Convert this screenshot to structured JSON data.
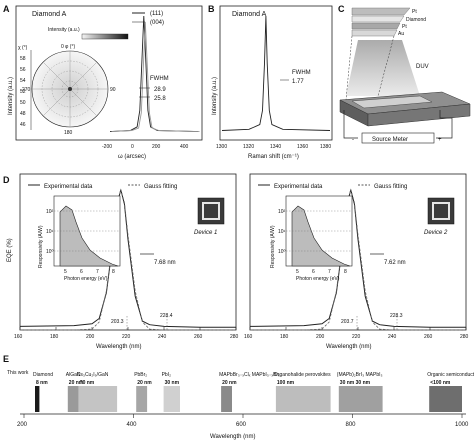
{
  "panel_letters": {
    "a": "A",
    "b": "B",
    "c": "C",
    "d": "D",
    "e": "E"
  },
  "panelA": {
    "title": "Diamond A",
    "legend": [
      "(111)",
      "(004)"
    ],
    "intensity_label": "Intensity (a.u.)",
    "chi_label": "χ (°)",
    "chi_ticks": [
      "58",
      "56",
      "54",
      "52",
      "50",
      "48",
      "46"
    ],
    "phi_label": "0 φ (°)",
    "angle_labels": {
      "left": "270",
      "right": "90",
      "bottom": "180"
    },
    "fwhm_label": "FWHM",
    "fwhm_values": [
      "28.9",
      "25.8"
    ],
    "ylabel": "Intensity (a.u.)",
    "xlabel": "ω (arcsec)",
    "xticks": [
      "-200",
      "0",
      "200",
      "400"
    ]
  },
  "panelB": {
    "title": "Diamond A",
    "fwhm_label": "FWHM",
    "fwhm_value": "1.77",
    "ylabel": "Intensity (a.u.)",
    "xlabel": "Raman shift (cm⁻¹)",
    "xticks": [
      "1300",
      "1320",
      "1340",
      "1360",
      "1380"
    ]
  },
  "panelC": {
    "labels": [
      "Pt",
      "Diamond",
      "Pt",
      "Au",
      "DUV"
    ],
    "meter": "Source Meter",
    "minus": "-",
    "plus": "+"
  },
  "panelD": {
    "ylabel": "EQE (%)",
    "xlabel": "Wavelength (nm)",
    "legend_exp": "Experimental data",
    "legend_fit": "Gauss fitting",
    "inset_ylabel": "Responsivity (A/W)",
    "inset_xlabel": "Photon energy (eV)",
    "inset_xticks": [
      "5",
      "6",
      "7",
      "8"
    ],
    "inset_yticks": [
      "10²",
      "10¹",
      "10⁰"
    ],
    "devices": [
      {
        "name": "Device 1",
        "fwhm": "7.68 nm",
        "left": "203.3",
        "right": "228.4"
      },
      {
        "name": "Device 2",
        "fwhm": "7.62 nm",
        "left": "203.7",
        "right": "228.3"
      }
    ]
  },
  "panelE": {
    "this_work": "This work",
    "xlabel": "Wavelength (nm)",
    "items": [
      {
        "material": "Diamond",
        "width": "8 nm",
        "color": "#1a1a1a"
      },
      {
        "material": "AlGaN",
        "width": "20 nm",
        "color": "#9a9a9a"
      },
      {
        "material": "Cs₃Cu₂I₅/GaN",
        "width": "70 nm",
        "color": "#c4c4c4"
      },
      {
        "material": "PbBr₂",
        "width": "20 nm",
        "color": "#a6a6a6"
      },
      {
        "material": "PbI₂",
        "width": "30 nm",
        "color": "#d0d0d0"
      },
      {
        "material": "MAPbBr₃₋ₓClₓ MAPbI₃₋ₓBrₓ",
        "width": "20 nm",
        "color": "#8a8a8a"
      },
      {
        "material": "Organohalide perovskites",
        "width": "100 nm",
        "color": "#bdbdbd"
      },
      {
        "material": "(MAPb)₂BrI₃ MAPbI₃",
        "width": "30 nm 30 nm",
        "color": "#a0a0a0"
      },
      {
        "material": "Organic semiconductor",
        "width": "<100 nm",
        "color": "#6e6e6e"
      }
    ]
  },
  "chart_data": [
    {
      "type": "line",
      "title": "Diamond A",
      "xlabel": "ω (arcsec)",
      "ylabel": "Intensity (a.u.)",
      "xlim": [
        -250,
        400
      ],
      "x": [
        -250,
        -100,
        -50,
        -30,
        -15,
        0,
        15,
        30,
        50,
        100,
        400
      ],
      "series": [
        {
          "name": "(111)",
          "values": [
            0.02,
            0.03,
            0.06,
            0.2,
            0.6,
            1.0,
            0.6,
            0.2,
            0.06,
            0.03,
            0.02
          ]
        },
        {
          "name": "(004)",
          "values": [
            0.02,
            0.03,
            0.05,
            0.18,
            0.56,
            0.95,
            0.56,
            0.18,
            0.05,
            0.03,
            0.02
          ]
        }
      ],
      "fwhm": [
        28.9,
        25.8
      ]
    },
    {
      "type": "line",
      "title": "Diamond A",
      "xlabel": "Raman shift (cm⁻¹)",
      "ylabel": "Intensity (a.u.)",
      "xlim": [
        1300,
        1380
      ],
      "x": [
        1300,
        1320,
        1328,
        1330,
        1331.5,
        1332.5,
        1333.5,
        1335,
        1337,
        1345,
        1380
      ],
      "values": [
        0.03,
        0.04,
        0.08,
        0.2,
        0.6,
        1.0,
        0.6,
        0.2,
        0.08,
        0.04,
        0.03
      ],
      "fwhm": 1.77
    },
    {
      "type": "line",
      "xlabel": "Wavelength (nm)",
      "ylabel": "EQE (%)",
      "xlim": [
        160,
        280
      ],
      "ylim": [
        0,
        16
      ],
      "x": [
        160,
        190,
        200,
        204,
        208,
        212,
        214,
        216,
        218,
        220,
        224,
        228,
        232,
        240,
        260,
        280
      ],
      "series": [
        {
          "name": "Experimental data",
          "values": [
            0.4,
            0.5,
            0.7,
            1.3,
            4.2,
            10.5,
            14.2,
            15.8,
            14.2,
            10.2,
            3.8,
            1.0,
            0.6,
            0.4,
            0.3,
            0.3
          ]
        },
        {
          "name": "Gauss fitting",
          "values": [
            0.0,
            0.0,
            0.1,
            0.9,
            4.4,
            10.7,
            14.4,
            15.8,
            14.4,
            10.7,
            4.4,
            0.9,
            0.1,
            0.0,
            0.0,
            0.0
          ]
        }
      ],
      "annotations": [
        "7.68 nm",
        "203.3",
        "228.4",
        "Device 1"
      ]
    },
    {
      "type": "line",
      "xlabel": "Wavelength (nm)",
      "xlim": [
        160,
        280
      ],
      "ylim": [
        0,
        16
      ],
      "x": [
        160,
        190,
        200,
        204,
        208,
        212,
        214,
        216,
        218,
        220,
        224,
        228,
        232,
        240,
        260,
        280
      ],
      "series": [
        {
          "name": "Experimental data",
          "values": [
            0.4,
            0.5,
            0.7,
            1.3,
            4.2,
            10.5,
            14.2,
            15.8,
            14.2,
            10.2,
            3.8,
            1.0,
            0.6,
            0.4,
            0.3,
            0.3
          ]
        },
        {
          "name": "Gauss fitting",
          "values": [
            0.0,
            0.0,
            0.1,
            0.9,
            4.4,
            10.7,
            14.4,
            15.8,
            14.4,
            10.7,
            4.4,
            0.9,
            0.1,
            0.0,
            0.0,
            0.0
          ]
        }
      ],
      "annotations": [
        "7.62 nm",
        "203.7",
        "228.3",
        "Device 2"
      ]
    },
    {
      "type": "bar",
      "xlabel": "Wavelength (nm)",
      "xlim": [
        200,
        1000
      ],
      "xticks": [
        200,
        400,
        600,
        800,
        1000
      ],
      "categories": [
        "Diamond",
        "AlGaN",
        "Cs₃Cu₂I₅/GaN",
        "PbBr₂",
        "PbI₂",
        "MAPbBr₃₋ₓClₓ / MAPbI₃₋ₓBrₓ",
        "Organohalide perovskites",
        "(MAPb)₂BrI₃ / MAPbI₃",
        "Organic semiconductor"
      ],
      "ranges": [
        [
          220,
          228
        ],
        [
          280,
          300
        ],
        [
          300,
          370
        ],
        [
          405,
          425
        ],
        [
          455,
          485
        ],
        [
          560,
          580
        ],
        [
          660,
          760
        ],
        [
          775,
          855
        ],
        [
          940,
          1000
        ]
      ],
      "widths": [
        "8 nm",
        "20 nm",
        "70 nm",
        "20 nm",
        "30 nm",
        "20 nm",
        "100 nm",
        "30 nm 30 nm",
        "<100 nm"
      ]
    }
  ]
}
